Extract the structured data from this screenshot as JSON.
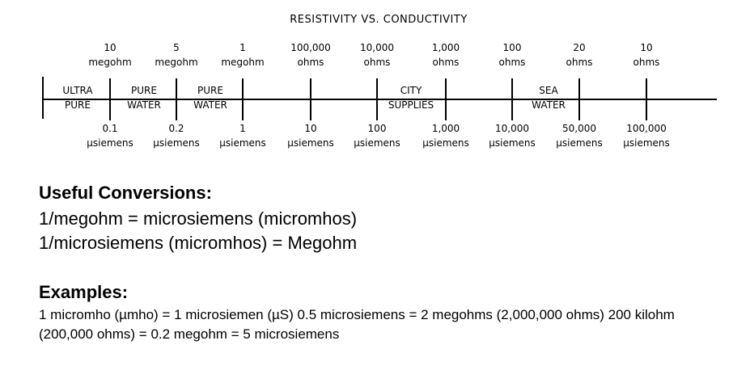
{
  "diagram": {
    "title": "RESISTIVITY VS. CONDUCTIVITY",
    "resistivity_labels": [
      {
        "value": "10",
        "unit": "megohm"
      },
      {
        "value": "5",
        "unit": "megohm"
      },
      {
        "value": "1",
        "unit": "megohm"
      },
      {
        "value": "100,000",
        "unit": "ohms"
      },
      {
        "value": "10,000",
        "unit": "ohms"
      },
      {
        "value": "1,000",
        "unit": "ohms"
      },
      {
        "value": "100",
        "unit": "ohms"
      },
      {
        "value": "20",
        "unit": "ohms"
      },
      {
        "value": "10",
        "unit": "ohms"
      }
    ],
    "conductivity_labels": [
      {
        "value": "0.1",
        "unit": "µsiemens"
      },
      {
        "value": "0.2",
        "unit": "µsiemens"
      },
      {
        "value": "1",
        "unit": "µsiemens"
      },
      {
        "value": "10",
        "unit": "µsiemens"
      },
      {
        "value": "100",
        "unit": "µsiemens"
      },
      {
        "value": "1,000",
        "unit": "µsiemens"
      },
      {
        "value": "10,000",
        "unit": "µsiemens"
      },
      {
        "value": "50,000",
        "unit": "µsiemens"
      },
      {
        "value": "100,000",
        "unit": "µsiemens"
      }
    ],
    "regions": [
      {
        "line1": "ULTRA",
        "line2": "PURE"
      },
      {
        "line1": "PURE",
        "line2": "WATER"
      },
      {
        "line1": "PURE",
        "line2": "WATER"
      },
      {
        "line1": "CITY",
        "line2": "SUPPLIES"
      },
      {
        "line1": "SEA",
        "line2": "WATER"
      }
    ]
  },
  "conversions": {
    "heading": "Useful Conversions:",
    "lines": [
      "1/megohm = microsiemens (micromhos)",
      "1/microsiemens (micromhos) = Megohm"
    ]
  },
  "examples": {
    "heading": "Examples:",
    "text": "1 micromho (µmho) = 1 microsiemen (µS) 0.5 microsiemens = 2 megohms (2,000,000 ohms) 200 kilohm (200,000 ohms) = 0.2 megohm = 5 microsiemens"
  }
}
